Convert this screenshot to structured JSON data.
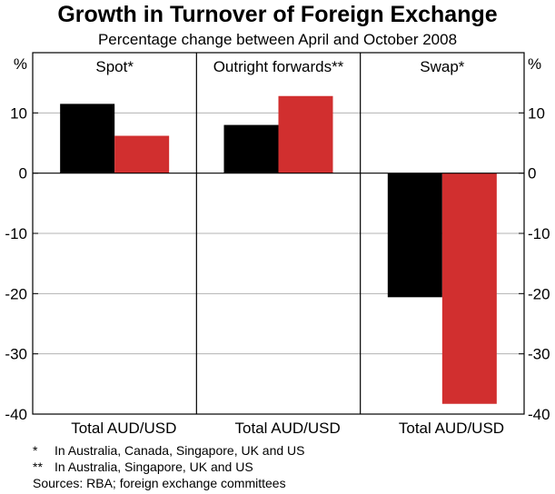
{
  "chart_data": {
    "type": "bar",
    "title": "Growth in Turnover of Foreign Exchange",
    "subtitle": "Percentage change between April and October 2008",
    "ylabel_left": "%",
    "ylabel_right": "%",
    "ylim": [
      -40,
      20
    ],
    "yticks": [
      10,
      0,
      -10,
      -20,
      -30,
      -40
    ],
    "ytick_labels": [
      "10",
      "0",
      "-10",
      "-20",
      "-30",
      "-40"
    ],
    "grid": true,
    "categories": [
      "Total",
      "AUD/USD"
    ],
    "colors": {
      "Total": "#000000",
      "AUD/USD": "#d12f2f"
    },
    "panels": [
      {
        "title": "Spot*",
        "values": [
          11.5,
          6.2
        ]
      },
      {
        "title": "Outright forwards**",
        "values": [
          8.0,
          12.8
        ]
      },
      {
        "title": "Swap*",
        "values": [
          -20.6,
          -38.3
        ]
      }
    ]
  },
  "footnotes": [
    {
      "mark": "*",
      "text": "In Australia, Canada, Singapore, UK and US"
    },
    {
      "mark": "**",
      "text": "In Australia, Singapore, UK and US"
    }
  ],
  "sources": "Sources: RBA; foreign exchange committees"
}
